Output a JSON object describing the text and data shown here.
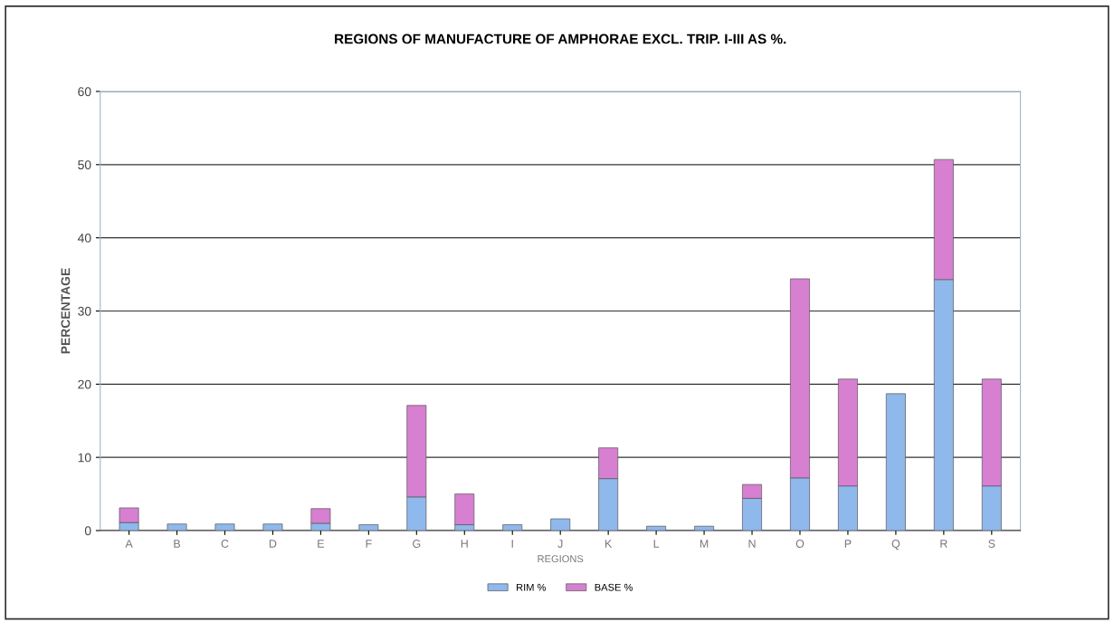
{
  "chart_data": {
    "type": "bar",
    "title": "REGIONS OF MANUFACTURE OF AMPHORAE EXCL. TRIP. I-III AS %.",
    "xlabel": "REGIONS",
    "ylabel": "PERCENTAGE",
    "categories": [
      "A",
      "B",
      "C",
      "D",
      "E",
      "F",
      "G",
      "H",
      "I",
      "J",
      "K",
      "L",
      "M",
      "N",
      "O",
      "P",
      "Q",
      "R",
      "S"
    ],
    "stacked": true,
    "series": [
      {
        "name": "RIM %",
        "color": "#8fb8ec",
        "values": [
          1.1,
          0.9,
          0.9,
          0.9,
          1.0,
          0.8,
          4.6,
          0.8,
          0.8,
          1.6,
          7.1,
          0.6,
          0.6,
          4.4,
          7.2,
          6.1,
          18.7,
          34.3,
          6.1
        ]
      },
      {
        "name": "BASE %",
        "color": "#d77fd0",
        "values": [
          2.0,
          null,
          null,
          null,
          2.0,
          null,
          12.5,
          4.2,
          null,
          null,
          4.2,
          null,
          null,
          1.9,
          27.2,
          14.6,
          null,
          16.4,
          14.6
        ]
      }
    ],
    "ylim": [
      0,
      60
    ],
    "yticks": [
      0,
      10,
      20,
      30,
      40,
      50,
      60
    ],
    "grid": "y",
    "legend": "bottom"
  }
}
